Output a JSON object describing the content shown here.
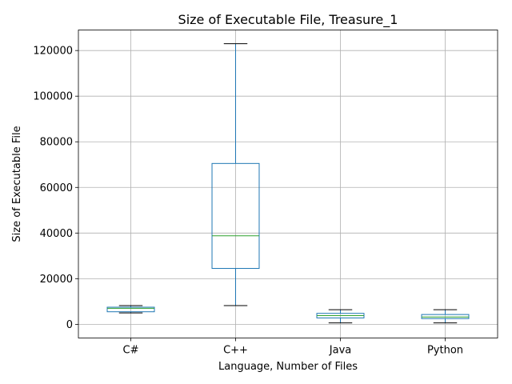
{
  "chart_data": {
    "type": "box",
    "title": "Size of Executable File, Treasure_1",
    "xlabel": "Language, Number of Files",
    "ylabel": "Size of Executable File",
    "ylim": [
      -6000,
      129000
    ],
    "yticks": [
      0,
      20000,
      40000,
      60000,
      80000,
      100000,
      120000
    ],
    "grid": true,
    "categories": [
      "C#",
      "C++",
      "Java",
      "Python"
    ],
    "boxes": [
      {
        "category": "C#",
        "whisker_low": 5000,
        "q1": 5500,
        "median": 7000,
        "q3": 7500,
        "whisker_high": 8200
      },
      {
        "category": "C++",
        "whisker_low": 8200,
        "q1": 24500,
        "median": 38800,
        "q3": 70500,
        "whisker_high": 123000
      },
      {
        "category": "Java",
        "whisker_low": 600,
        "q1": 2800,
        "median": 3800,
        "q3": 4800,
        "whisker_high": 6400
      },
      {
        "category": "Python",
        "whisker_low": 600,
        "q1": 2500,
        "median": 3200,
        "q3": 4300,
        "whisker_high": 6400
      }
    ],
    "colors": {
      "box": "#1f77b4",
      "median": "#2ca02c",
      "whisker_cap": "#000000",
      "grid": "#b0b0b0"
    }
  }
}
